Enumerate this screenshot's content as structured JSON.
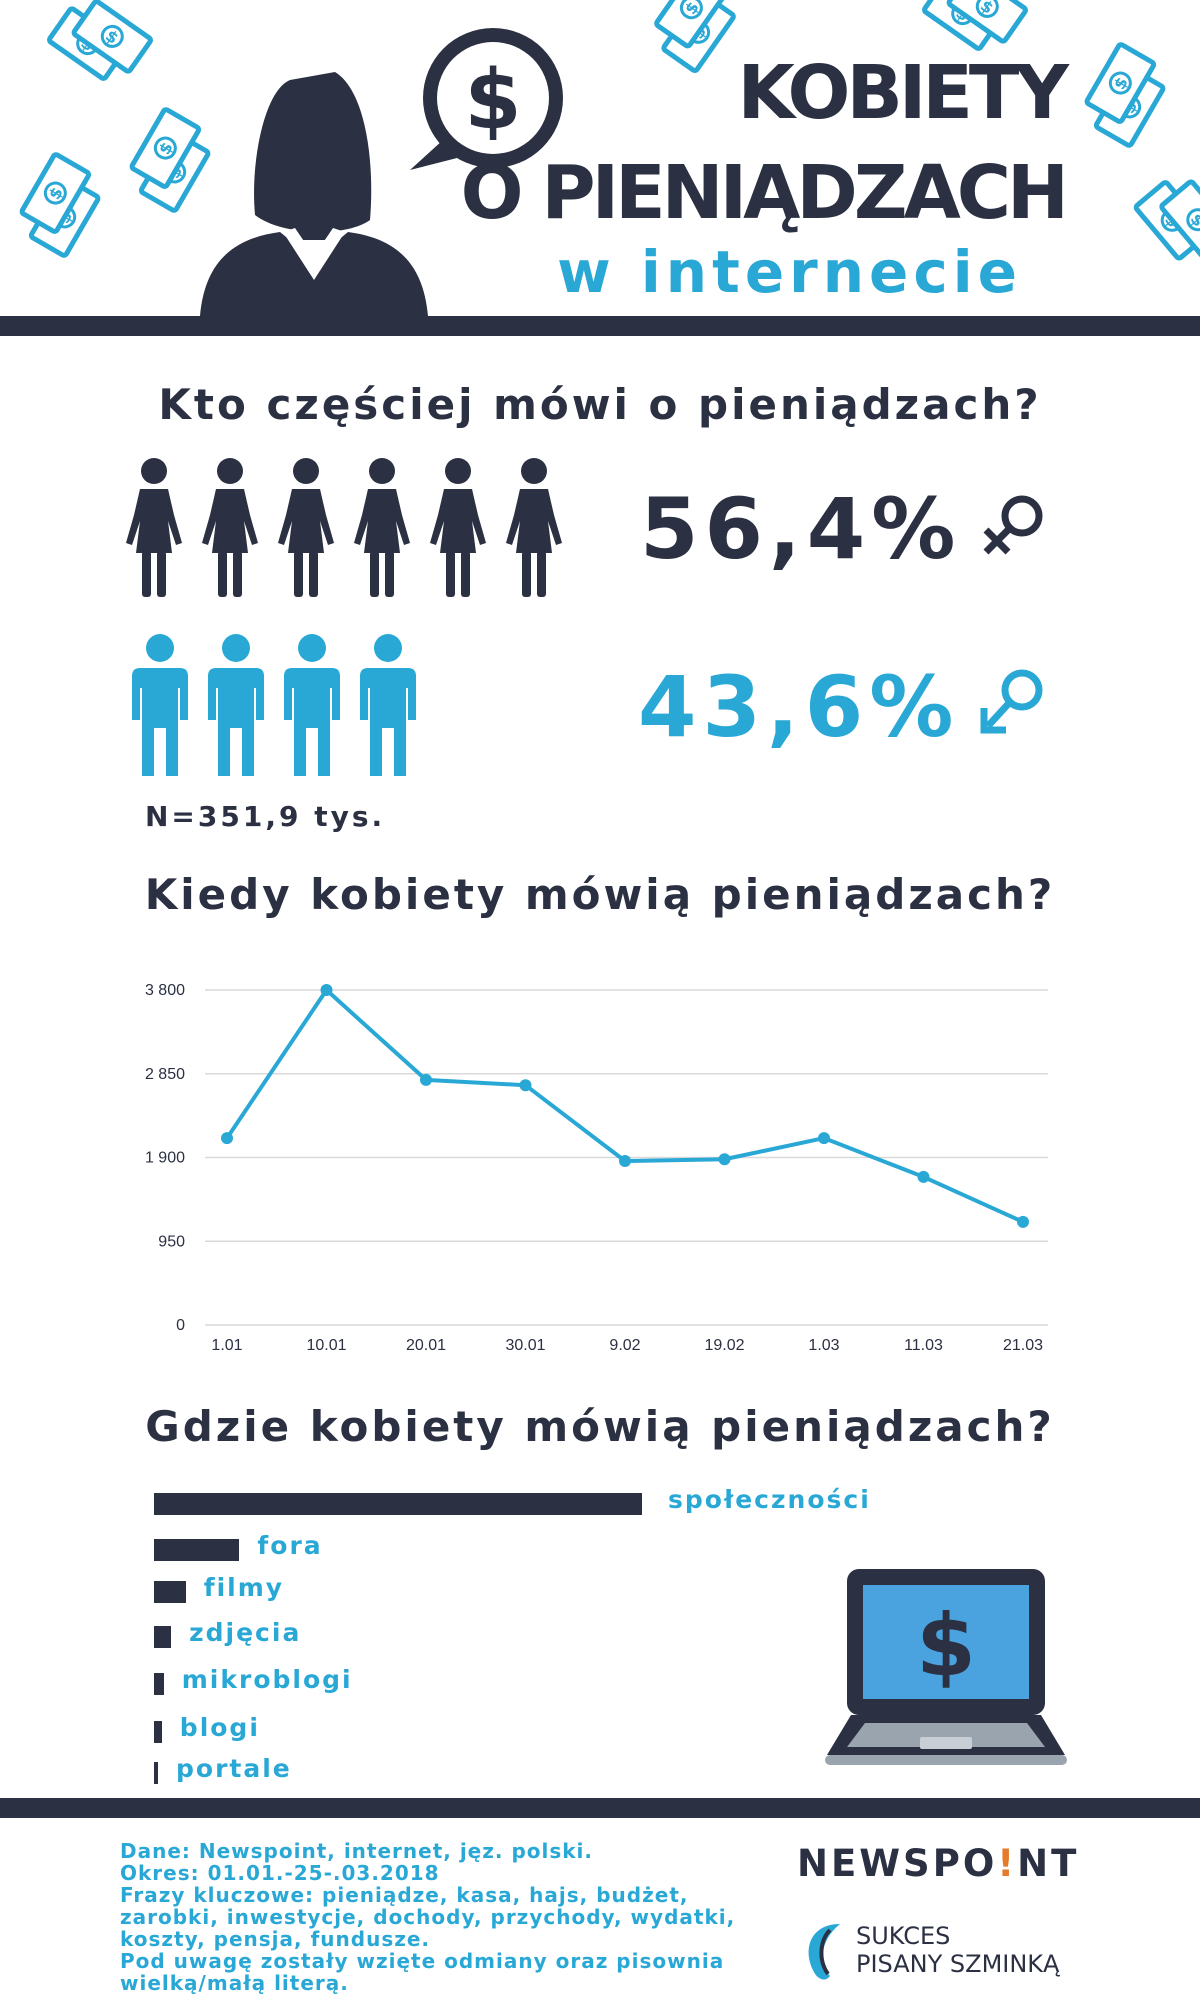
{
  "header": {
    "title_line1": "KOBIETY",
    "title_line2": "O PIENIĄDZACH",
    "title_line3": "w internecie"
  },
  "gender_section": {
    "heading": "Kto częściej mówi o pieniądzach?",
    "female_percent": "56,4%",
    "male_percent": "43,6%",
    "female_icons": 6,
    "male_icons": 4,
    "sample_size": "N=351,9 tys."
  },
  "time_section": {
    "heading": "Kiedy kobiety mówią pieniądzach?"
  },
  "chart_data": {
    "type": "line",
    "categories": [
      "1.01",
      "10.01",
      "20.01",
      "30.01",
      "9.02",
      "19.02",
      "1.03",
      "11.03",
      "21.03"
    ],
    "values": [
      2120,
      3800,
      2780,
      2720,
      1860,
      1880,
      2120,
      1680,
      1170
    ],
    "y_ticks": [
      "0",
      "950",
      "1 900",
      "2 850",
      "3 800"
    ],
    "y_tick_values": [
      0,
      950,
      1900,
      2850,
      3800
    ],
    "ylim": [
      0,
      3800
    ],
    "grid": true,
    "title": "",
    "xlabel": "",
    "ylabel": ""
  },
  "where_section": {
    "heading": "Gdzie kobiety mówią pieniądzach?",
    "bars": [
      {
        "label": "społeczności",
        "value": 100
      },
      {
        "label": "fora",
        "value": 17.5
      },
      {
        "label": "filmy",
        "value": 6.5
      },
      {
        "label": "zdjęcia",
        "value": 3.5
      },
      {
        "label": "mikroblogi",
        "value": 2
      },
      {
        "label": "blogi",
        "value": 1.6
      },
      {
        "label": "portale",
        "value": 0.8
      }
    ]
  },
  "footer": {
    "notes": [
      "Dane: Newspoint, internet, jęz. polski.",
      "Okres: 01.01.-25-.03.2018",
      "Frazy kluczowe: pieniądze, kasa, hajs, budżet, zarobki, inwestycje, dochody, przychody, wydatki, koszty, pensja, fundusze.",
      "Pod uwagę zostały wzięte odmiany oraz pisownia wielką/małą literą."
    ],
    "newspoint_logo_a": "NEWSPO",
    "newspoint_logo_dot": "!",
    "newspoint_logo_b": "NT",
    "sukces_line1": "SUKCES",
    "sukces_line2": "PISANY SZMINKĄ"
  },
  "colors": {
    "navy": "#2b3042",
    "accent": "#29a8d6",
    "laptop_screen": "#4aa3df"
  }
}
